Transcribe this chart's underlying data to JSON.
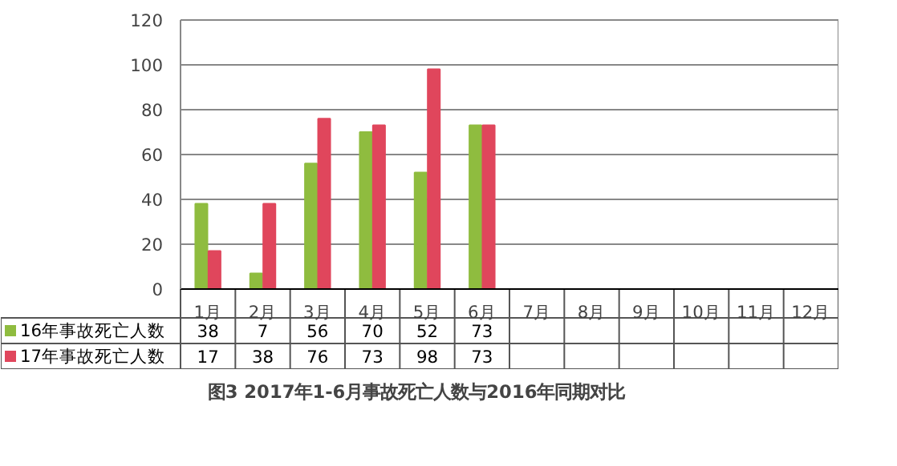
{
  "chart_data": {
    "type": "bar",
    "title": "图3  2017年1-6月事故死亡人数与2016年同期对比",
    "categories": [
      "1月",
      "2月",
      "3月",
      "4月",
      "5月",
      "6月",
      "7月",
      "8月",
      "9月",
      "10月",
      "11月",
      "12月"
    ],
    "series": [
      {
        "name": "16年事故死亡人数",
        "color": "#8fbc3f",
        "values": [
          38,
          7,
          56,
          70,
          52,
          73,
          null,
          null,
          null,
          null,
          null,
          null
        ]
      },
      {
        "name": "17年事故死亡人数",
        "color": "#e0465c",
        "values": [
          17,
          38,
          76,
          73,
          98,
          73,
          null,
          null,
          null,
          null,
          null,
          null
        ]
      }
    ],
    "ylim": [
      0,
      120
    ],
    "yticks": [
      0,
      20,
      40,
      60,
      80,
      100,
      120
    ],
    "grid": "y",
    "data_labels": true,
    "legend": "bottom left"
  }
}
